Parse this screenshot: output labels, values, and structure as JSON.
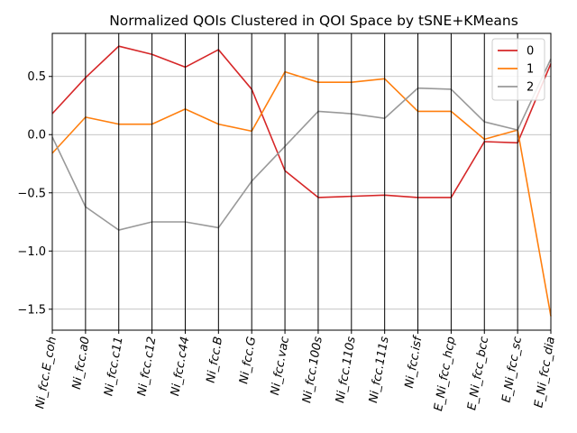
{
  "chart_data": {
    "type": "line",
    "title": "Normalized QOIs Clustered in QOI Space by tSNE+KMeans",
    "xlabel": "",
    "ylabel": "",
    "categories": [
      "Ni_fcc.E_coh",
      "Ni_fcc.a0",
      "Ni_fcc.c11",
      "Ni_fcc.c12",
      "Ni_fcc.c44",
      "Ni_fcc.B",
      "Ni_fcc.G",
      "Ni_fcc.vac",
      "Ni_fcc.100s",
      "Ni_fcc.110s",
      "Ni_fcc.111s",
      "Ni_fcc.isf",
      "E_Ni_fcc_hcp",
      "E_Ni_fcc_bcc",
      "E_Ni_fcc_sc",
      "E_Ni_fcc_dia"
    ],
    "ylim": [
      -1.68,
      0.87
    ],
    "yticks": [
      -1.5,
      -1.0,
      -0.5,
      0.0,
      0.5
    ],
    "ytick_labels": [
      "−1.5",
      "−1.0",
      "−0.5",
      "0.0",
      "0.5"
    ],
    "grid": {
      "vertical": "all categories",
      "horizontal": "y ticks"
    },
    "legend": {
      "position": "top-right"
    },
    "series": [
      {
        "name": "0",
        "color": "#d62728",
        "values": [
          0.18,
          0.49,
          0.76,
          0.69,
          0.58,
          0.73,
          0.39,
          -0.31,
          -0.54,
          -0.53,
          -0.52,
          -0.54,
          -0.54,
          -0.06,
          -0.07,
          0.61
        ]
      },
      {
        "name": "1",
        "color": "#ff7f0e",
        "values": [
          -0.16,
          0.15,
          0.09,
          0.09,
          0.22,
          0.09,
          0.03,
          0.54,
          0.45,
          0.45,
          0.48,
          0.2,
          0.2,
          -0.04,
          0.04,
          -1.56
        ]
      },
      {
        "name": "2",
        "color": "#999999",
        "values": [
          -0.02,
          -0.62,
          -0.82,
          -0.75,
          -0.75,
          -0.8,
          -0.4,
          -0.1,
          0.2,
          0.18,
          0.14,
          0.4,
          0.39,
          0.11,
          0.04,
          0.65
        ]
      }
    ]
  }
}
